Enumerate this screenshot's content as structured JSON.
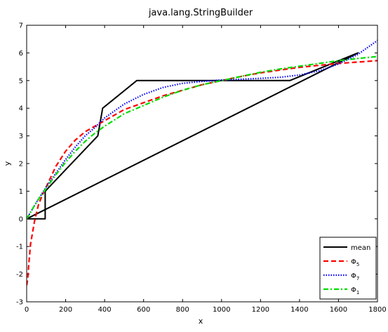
{
  "chart_data": {
    "type": "line",
    "title": "java.lang.StringBuilder",
    "xlabel": "x",
    "ylabel": "y",
    "xlim": [
      0,
      1800
    ],
    "ylim": [
      -3,
      7
    ],
    "xticks": [
      0,
      200,
      400,
      600,
      800,
      1000,
      1200,
      1400,
      1600,
      1800
    ],
    "yticks": [
      -3,
      -2,
      -1,
      0,
      1,
      2,
      3,
      4,
      5,
      6,
      7
    ],
    "grid": false,
    "legend_position": "bottom-right",
    "series": [
      {
        "name": "mean",
        "legend_label": "mean",
        "color": "#000000",
        "style": "solid",
        "x": [
          0,
          95,
          95,
          365,
          390,
          565,
          1350,
          1700,
          0
        ],
        "y": [
          0,
          0,
          1,
          3,
          4,
          5,
          5,
          6,
          0
        ]
      },
      {
        "name": "Φ5",
        "legend_label": "Φ",
        "legend_sub": "5",
        "color": "#ff0000",
        "style": "dashed",
        "x": [
          0,
          5,
          10,
          20,
          40,
          60,
          80,
          100,
          150,
          200,
          250,
          300,
          350,
          400,
          500,
          600,
          700,
          800,
          900,
          1000,
          1100,
          1200,
          1300,
          1400,
          1500,
          1600,
          1700,
          1800
        ],
        "y": [
          -2.4,
          -2.2,
          -1.7,
          -0.9,
          -0.1,
          0.5,
          0.85,
          1.15,
          1.9,
          2.45,
          2.85,
          3.15,
          3.35,
          3.55,
          3.95,
          4.2,
          4.45,
          4.65,
          4.85,
          5.0,
          5.15,
          5.28,
          5.38,
          5.48,
          5.55,
          5.62,
          5.67,
          5.72
        ]
      },
      {
        "name": "Φ7",
        "legend_label": "Φ",
        "legend_sub": "7",
        "color": "#0000ff",
        "style": "dotted",
        "x": [
          0,
          50,
          100,
          150,
          200,
          250,
          300,
          350,
          400,
          500,
          600,
          700,
          800,
          900,
          1000,
          1100,
          1200,
          1300,
          1400,
          1500,
          1600,
          1700,
          1800
        ],
        "y": [
          0,
          0.6,
          1.15,
          1.65,
          2.15,
          2.6,
          3.0,
          3.3,
          3.65,
          4.15,
          4.5,
          4.75,
          4.9,
          4.97,
          5.02,
          5.05,
          5.08,
          5.12,
          5.2,
          5.35,
          5.6,
          5.95,
          6.45
        ]
      },
      {
        "name": "Φ1",
        "legend_label": "Φ",
        "legend_sub": "1",
        "color": "#00dd00",
        "style": "dashdot",
        "x": [
          0,
          50,
          100,
          150,
          200,
          250,
          300,
          350,
          400,
          500,
          600,
          700,
          800,
          900,
          1000,
          1100,
          1200,
          1300,
          1400,
          1500,
          1600,
          1700,
          1800
        ],
        "y": [
          0,
          0.6,
          1.1,
          1.6,
          2.05,
          2.45,
          2.8,
          3.1,
          3.35,
          3.8,
          4.1,
          4.4,
          4.65,
          4.85,
          5.0,
          5.15,
          5.3,
          5.42,
          5.52,
          5.62,
          5.72,
          5.8,
          5.87
        ]
      }
    ]
  }
}
